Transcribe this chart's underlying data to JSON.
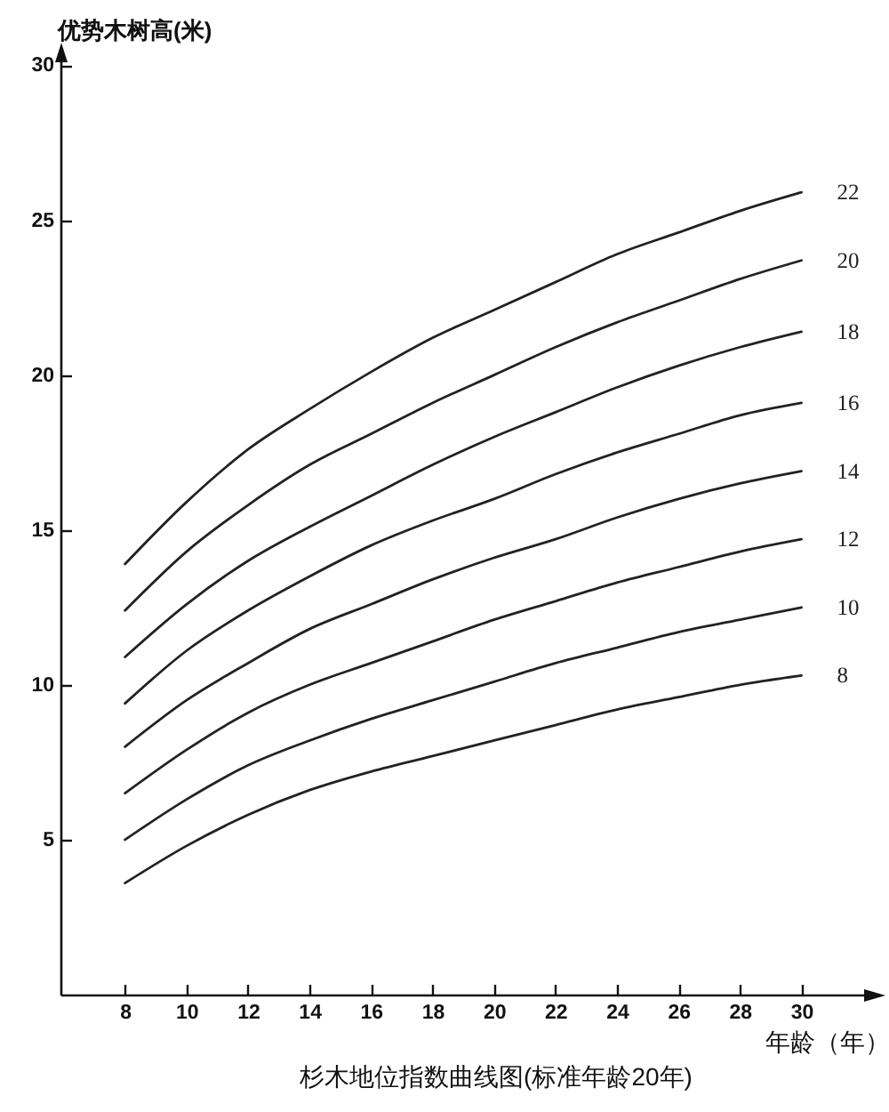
{
  "chart_data": {
    "type": "line",
    "title": "杉木地位指数曲线图(标准年龄20年)",
    "xlabel": "年龄（年）",
    "ylabel": "优势木树高(米)",
    "x": [
      8,
      10,
      12,
      14,
      16,
      18,
      20,
      22,
      24,
      26,
      28,
      30
    ],
    "xlim": [
      5.9,
      32.5
    ],
    "ylim": [
      0,
      30.5
    ],
    "xticks": [
      8,
      10,
      12,
      14,
      16,
      18,
      20,
      22,
      24,
      26,
      28,
      30
    ],
    "yticks": [
      5,
      10,
      15,
      20,
      25,
      30
    ],
    "grid": false,
    "legend": false,
    "marker": "none",
    "line_style": "solid",
    "series": [
      {
        "name": "22",
        "color": "#222222",
        "values": [
          13.9,
          15.9,
          17.6,
          18.9,
          20.1,
          21.2,
          22.1,
          23.0,
          23.9,
          24.6,
          25.3,
          25.9
        ]
      },
      {
        "name": "20",
        "color": "#222222",
        "values": [
          12.4,
          14.3,
          15.8,
          17.1,
          18.1,
          19.1,
          20.0,
          20.9,
          21.7,
          22.4,
          23.1,
          23.7
        ]
      },
      {
        "name": "18",
        "color": "#222222",
        "values": [
          10.9,
          12.6,
          14.0,
          15.1,
          16.1,
          17.1,
          18.0,
          18.8,
          19.6,
          20.3,
          20.9,
          21.4
        ]
      },
      {
        "name": "16",
        "color": "#222222",
        "values": [
          9.4,
          11.1,
          12.4,
          13.5,
          14.5,
          15.3,
          16.0,
          16.8,
          17.5,
          18.1,
          18.7,
          19.1
        ]
      },
      {
        "name": "14",
        "color": "#222222",
        "values": [
          8.0,
          9.5,
          10.7,
          11.8,
          12.6,
          13.4,
          14.1,
          14.7,
          15.4,
          16.0,
          16.5,
          16.9
        ]
      },
      {
        "name": "12",
        "color": "#222222",
        "values": [
          6.5,
          7.9,
          9.1,
          10.0,
          10.7,
          11.4,
          12.1,
          12.7,
          13.3,
          13.8,
          14.3,
          14.7
        ]
      },
      {
        "name": "10",
        "color": "#222222",
        "values": [
          5.0,
          6.3,
          7.4,
          8.2,
          8.9,
          9.5,
          10.1,
          10.7,
          11.2,
          11.7,
          12.1,
          12.5
        ]
      },
      {
        "name": "8",
        "color": "#222222",
        "values": [
          3.6,
          4.8,
          5.8,
          6.6,
          7.2,
          7.7,
          8.2,
          8.7,
          9.2,
          9.6,
          10.0,
          10.3
        ]
      }
    ]
  }
}
